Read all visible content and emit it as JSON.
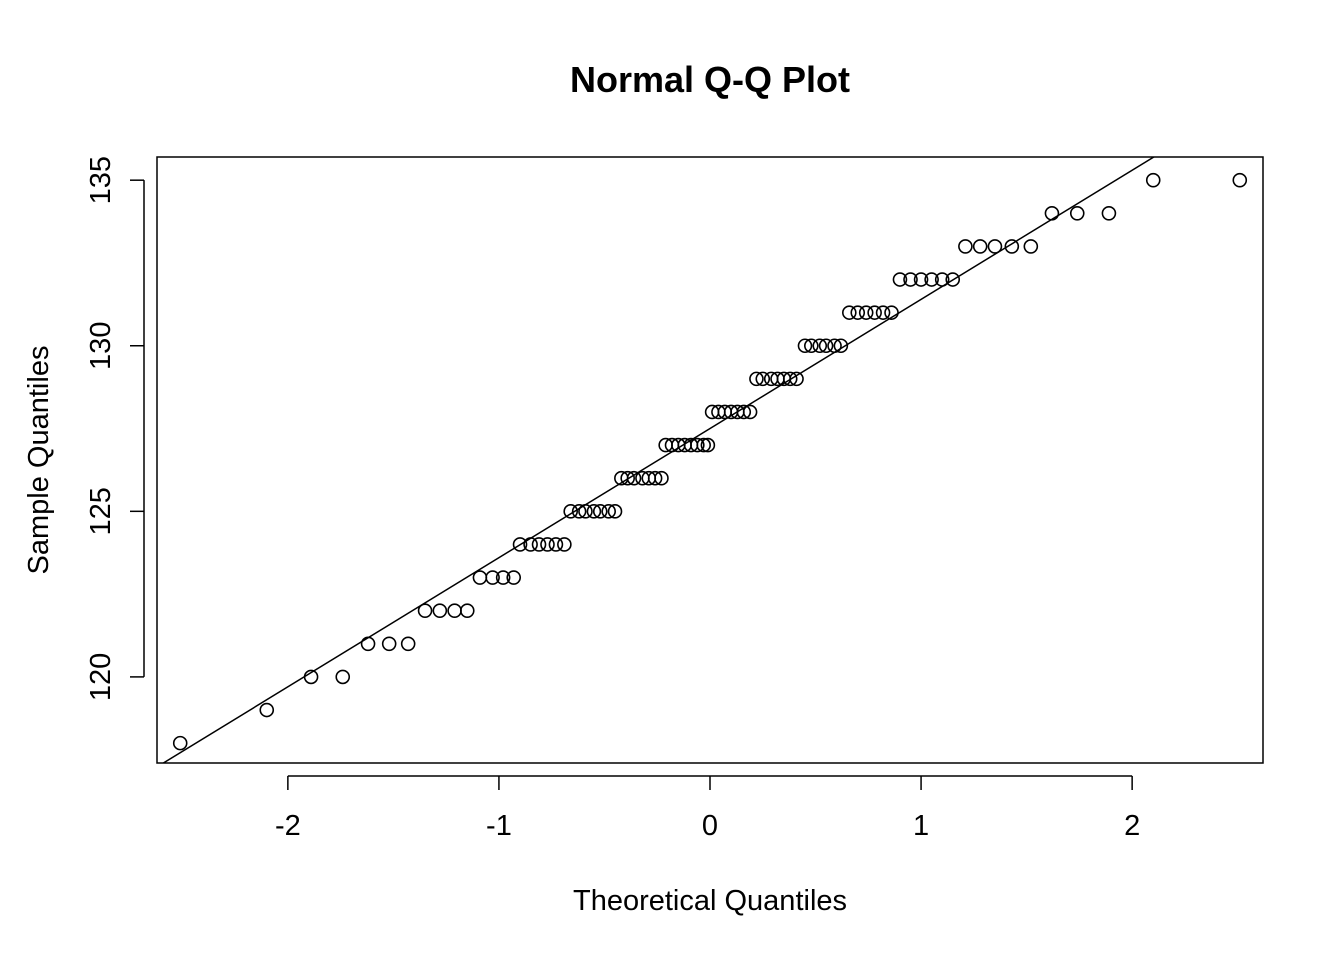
{
  "chart_data": {
    "type": "scatter",
    "title": "Normal Q-Q Plot",
    "xlabel": "Theoretical Quantiles",
    "ylabel": "Sample Quantiles",
    "xlim": [
      -2.62,
      2.62
    ],
    "ylim": [
      117.4,
      135.7
    ],
    "x_ticks": [
      -2,
      -1,
      0,
      1,
      2
    ],
    "x_tick_labels": [
      "-2",
      "-1",
      "0",
      "1",
      "2"
    ],
    "y_ticks": [
      120,
      125,
      130,
      135
    ],
    "y_tick_labels": [
      "120",
      "125",
      "130",
      "135"
    ],
    "grid": false,
    "legend": "none",
    "reference_line": {
      "slope": 3.9,
      "intercept": 127.5
    },
    "points": [
      {
        "y": 118,
        "x": [
          -2.51
        ]
      },
      {
        "y": 119,
        "x": [
          -2.1
        ]
      },
      {
        "y": 120,
        "x": [
          -1.89,
          -1.74
        ]
      },
      {
        "y": 121,
        "x": [
          -1.62,
          -1.52,
          -1.43
        ]
      },
      {
        "y": 122,
        "x": [
          -1.35,
          -1.28,
          -1.21,
          -1.15
        ]
      },
      {
        "y": 123,
        "x": [
          -1.09,
          -1.03,
          -0.98,
          -0.93
        ]
      },
      {
        "y": 124,
        "x": [
          -0.9,
          -0.85,
          -0.81,
          -0.77,
          -0.73,
          -0.69
        ]
      },
      {
        "y": 125,
        "x": [
          -0.66,
          -0.62,
          -0.59,
          -0.55,
          -0.52,
          -0.48,
          -0.45
        ]
      },
      {
        "y": 126,
        "x": [
          -0.42,
          -0.39,
          -0.36,
          -0.32,
          -0.29,
          -0.26,
          -0.23
        ]
      },
      {
        "y": 127,
        "x": [
          -0.21,
          -0.18,
          -0.15,
          -0.12,
          -0.09,
          -0.06,
          -0.03,
          -0.01
        ]
      },
      {
        "y": 128,
        "x": [
          0.01,
          0.04,
          0.07,
          0.1,
          0.13,
          0.16,
          0.19
        ]
      },
      {
        "y": 129,
        "x": [
          0.22,
          0.25,
          0.29,
          0.32,
          0.35,
          0.38,
          0.41
        ]
      },
      {
        "y": 130,
        "x": [
          0.45,
          0.48,
          0.52,
          0.55,
          0.59,
          0.62
        ]
      },
      {
        "y": 131,
        "x": [
          0.66,
          0.7,
          0.74,
          0.78,
          0.82,
          0.86
        ]
      },
      {
        "y": 132,
        "x": [
          0.9,
          0.95,
          1.0,
          1.05,
          1.1,
          1.15
        ]
      },
      {
        "y": 133,
        "x": [
          1.21,
          1.28,
          1.35,
          1.43,
          1.52
        ]
      },
      {
        "y": 134,
        "x": [
          1.62,
          1.74,
          1.89
        ]
      },
      {
        "y": 135,
        "x": [
          2.1,
          2.51
        ]
      }
    ]
  }
}
